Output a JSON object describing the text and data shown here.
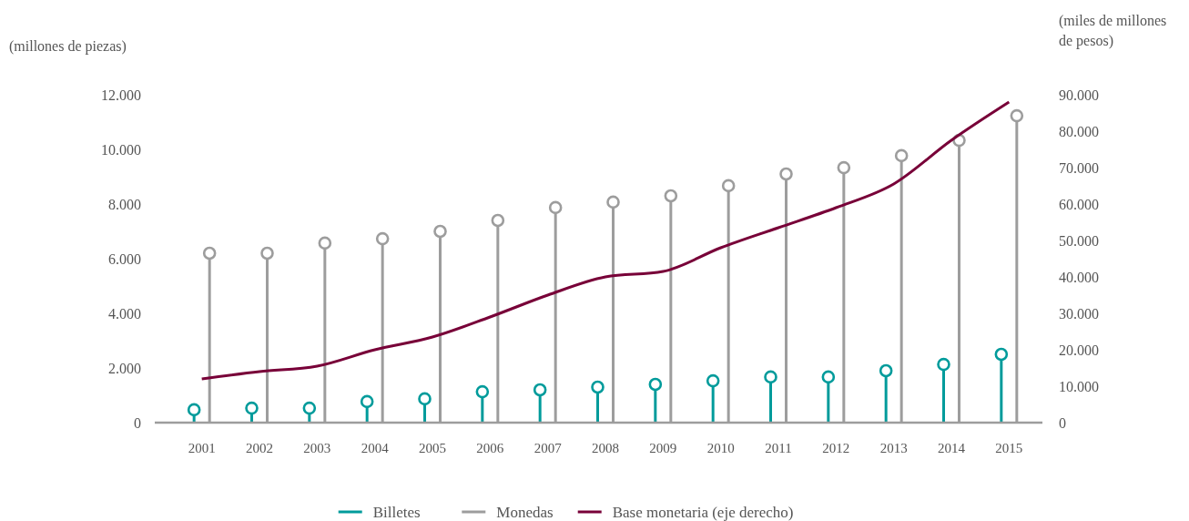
{
  "chart_data": {
    "type": "lollipop",
    "ylabel": "(millones de piezas)",
    "y2label": "(miles de millones de pesos)",
    "categories": [
      "2001",
      "2002",
      "2003",
      "2004",
      "2005",
      "2006",
      "2007",
      "2008",
      "2009",
      "2010",
      "2011",
      "2012",
      "2013",
      "2014",
      "2015"
    ],
    "series": [
      {
        "name": "Billetes",
        "color": "#009b9b",
        "marker": "circle",
        "values": [
          470,
          530,
          530,
          770,
          870,
          1130,
          1200,
          1300,
          1400,
          1530,
          1670,
          1670,
          1900,
          2130,
          2500
        ]
      },
      {
        "name": "Monedas",
        "color": "#9d9d9d",
        "marker": "circle",
        "values": [
          6200,
          6200,
          6570,
          6730,
          7000,
          7400,
          7870,
          8070,
          8300,
          8670,
          9100,
          9330,
          9770,
          10330,
          11230
        ]
      },
      {
        "name": "Base monetaria (eje derecho)",
        "type": "line",
        "axis": "y2",
        "color": "#780038",
        "values": [
          12000,
          14000,
          15500,
          20000,
          23500,
          29000,
          35000,
          40000,
          41500,
          48000,
          53500,
          59000,
          65500,
          77500,
          88000
        ]
      }
    ],
    "ylim": [
      0,
      12000
    ],
    "yticks": [
      0,
      {
        "value": 2000,
        "label": "2.000"
      },
      {
        "value": 4000,
        "label": "4.000"
      },
      {
        "value": 6000,
        "label": "6.000"
      },
      {
        "value": 8000,
        "label": "8.000"
      },
      {
        "value": 10000,
        "label": "10.000"
      },
      {
        "value": 12000,
        "label": "12.000"
      }
    ],
    "y2lim": [
      0,
      90000
    ],
    "y2ticks": [
      0,
      {
        "value": 10000,
        "label": "10.000"
      },
      {
        "value": 20000,
        "label": "20.000"
      },
      {
        "value": 30000,
        "label": "30.000"
      },
      {
        "value": 40000,
        "label": "40.000"
      },
      {
        "value": 50000,
        "label": "50.000"
      },
      {
        "value": 60000,
        "label": "60.000"
      },
      {
        "value": 70000,
        "label": "70.000"
      },
      {
        "value": 80000,
        "label": "80.000"
      },
      {
        "value": 90000,
        "label": "90.000"
      }
    ],
    "legend": "bottom",
    "grid": false
  }
}
